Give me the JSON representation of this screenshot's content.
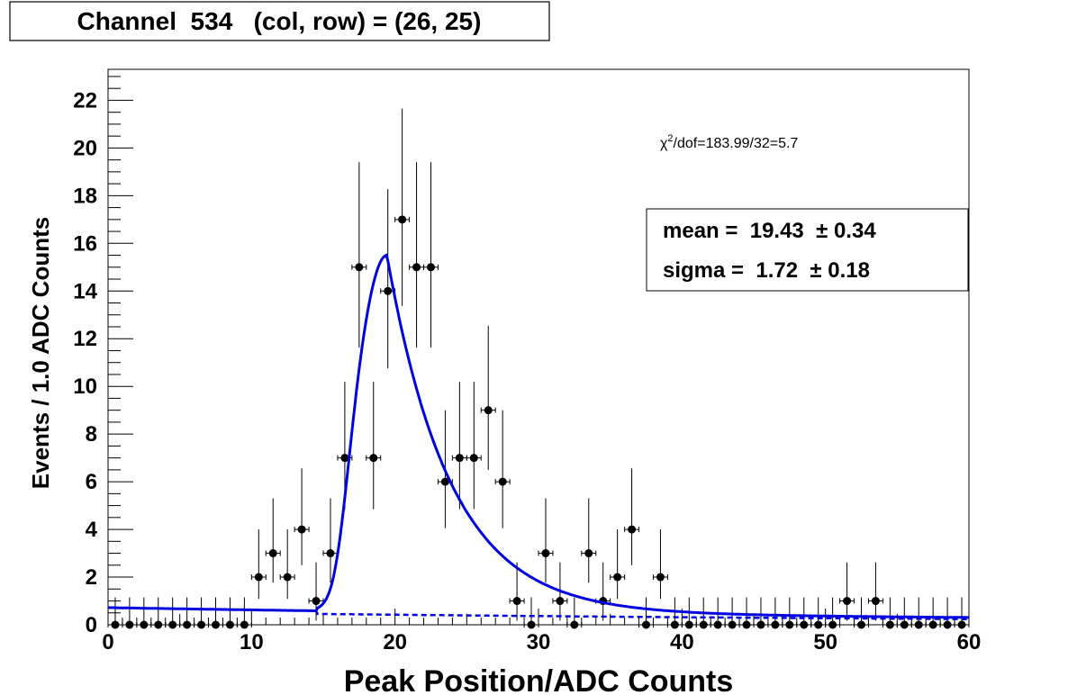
{
  "title": "Channel  534   (col, row) = (26, 25)",
  "fit_box": {
    "chi2_prefix": "χ",
    "chi2_sup": "2",
    "chi2_rest": "/dof=183.99/32=5.7",
    "mean_label": "mean =  19.43  ± 0.34",
    "sigma_label": "sigma =  1.72  ± 0.18"
  },
  "colors": {
    "fit": "#0000e0",
    "points": "#000000"
  },
  "chart_data": {
    "type": "scatter",
    "xlabel": "Peak Position/ADC Counts",
    "ylabel": "Events / 1.0 ADC Counts",
    "xlim": [
      0,
      60
    ],
    "ylim": [
      0,
      23.3
    ],
    "xticks": [
      0,
      10,
      20,
      30,
      40,
      50,
      60
    ],
    "yticks": [
      0,
      2,
      4,
      6,
      8,
      10,
      12,
      14,
      16,
      18,
      20,
      22
    ],
    "grid": false,
    "series": [
      {
        "kind": "histogram-points-with-errors",
        "x": [
          0.5,
          1.5,
          2.5,
          3.5,
          4.5,
          5.5,
          6.5,
          7.5,
          8.5,
          9.5,
          10.5,
          11.5,
          12.5,
          13.5,
          14.5,
          15.5,
          16.5,
          17.5,
          18.5,
          19.5,
          20.5,
          21.5,
          22.5,
          23.5,
          24.5,
          25.5,
          26.5,
          27.5,
          28.5,
          29.5,
          30.5,
          31.5,
          32.5,
          33.5,
          34.5,
          35.5,
          36.5,
          37.5,
          38.5,
          39.5,
          40.5,
          41.5,
          42.5,
          43.5,
          44.5,
          45.5,
          46.5,
          47.5,
          48.5,
          49.5,
          50.5,
          51.5,
          52.5,
          53.5,
          54.5,
          55.5,
          56.5,
          57.5,
          58.5,
          59.5
        ],
        "y": [
          0,
          0,
          0,
          0,
          0,
          0,
          0,
          0,
          0,
          0,
          2,
          3,
          2,
          4,
          1,
          3,
          7,
          15,
          7,
          14,
          17,
          15,
          15,
          6,
          7,
          7,
          9,
          6,
          1,
          0,
          3,
          1,
          0,
          3,
          1,
          2,
          4,
          0,
          2,
          0,
          0,
          0,
          0,
          0,
          0,
          0,
          0,
          0,
          0,
          0,
          0,
          1,
          0,
          1,
          0,
          0,
          0,
          0,
          0,
          0
        ]
      },
      {
        "kind": "fit-total",
        "style": "solid",
        "mean": 19.43,
        "mean_err": 0.34,
        "sigma": 1.72,
        "sigma_err": 0.18
      },
      {
        "kind": "fit-background",
        "style": "dashed"
      }
    ]
  }
}
